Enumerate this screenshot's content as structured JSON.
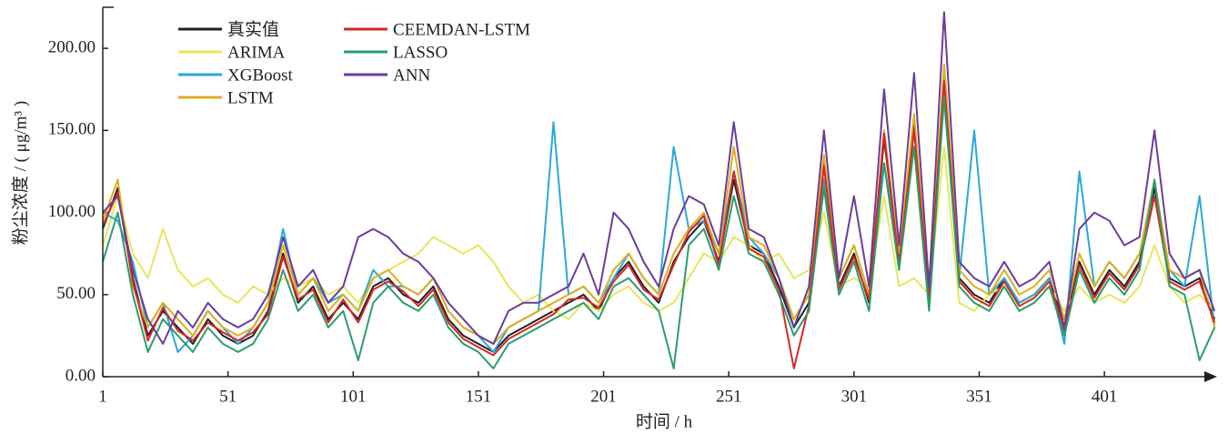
{
  "chart_data": {
    "type": "line",
    "y_label": "粉尘浓度 / ( μg/m³ )",
    "x_label": "时间 / h",
    "xlim": [
      1,
      446
    ],
    "xticks": [
      1,
      51,
      101,
      151,
      201,
      251,
      301,
      351,
      401
    ],
    "ylim": [
      0,
      225
    ],
    "yticks": [
      {
        "value": 0,
        "label": "0.00"
      },
      {
        "value": 50,
        "label": "50.00"
      },
      {
        "value": 100,
        "label": "100.00"
      },
      {
        "value": 150,
        "label": "150.00"
      },
      {
        "value": 200,
        "label": "200.00"
      }
    ],
    "grid": false,
    "legend": "upper left",
    "x": [
      1,
      7,
      13,
      19,
      25,
      31,
      37,
      43,
      49,
      55,
      61,
      67,
      73,
      79,
      85,
      91,
      97,
      103,
      109,
      115,
      121,
      127,
      133,
      139,
      145,
      151,
      157,
      163,
      169,
      175,
      181,
      187,
      193,
      199,
      205,
      211,
      217,
      223,
      229,
      235,
      241,
      247,
      253,
      259,
      265,
      271,
      277,
      283,
      289,
      295,
      301,
      307,
      313,
      319,
      325,
      331,
      337,
      343,
      349,
      355,
      361,
      367,
      373,
      379,
      385,
      391,
      397,
      403,
      409,
      415,
      421,
      427,
      433,
      439,
      445
    ],
    "series": [
      {
        "name": "真实值",
        "color": "#222222",
        "values": [
          90,
          115,
          60,
          25,
          40,
          30,
          20,
          35,
          25,
          20,
          25,
          40,
          75,
          45,
          55,
          35,
          45,
          35,
          55,
          60,
          50,
          45,
          55,
          35,
          25,
          20,
          15,
          25,
          30,
          35,
          40,
          45,
          50,
          40,
          60,
          70,
          55,
          45,
          70,
          85,
          95,
          70,
          120,
          80,
          75,
          55,
          30,
          45,
          130,
          55,
          75,
          45,
          145,
          70,
          155,
          45,
          185,
          60,
          50,
          45,
          60,
          45,
          50,
          60,
          30,
          70,
          50,
          65,
          55,
          70,
          115,
          60,
          55,
          60,
          35
        ]
      },
      {
        "name": "ARIMA",
        "color": "#e6e65c",
        "values": [
          80,
          110,
          75,
          60,
          90,
          65,
          55,
          60,
          50,
          45,
          55,
          50,
          60,
          55,
          60,
          50,
          55,
          45,
          60,
          65,
          70,
          75,
          85,
          80,
          75,
          80,
          70,
          55,
          45,
          50,
          40,
          35,
          45,
          40,
          50,
          55,
          45,
          40,
          45,
          60,
          75,
          70,
          85,
          80,
          70,
          75,
          60,
          65,
          100,
          55,
          60,
          55,
          110,
          55,
          60,
          50,
          140,
          45,
          40,
          50,
          55,
          45,
          50,
          55,
          40,
          55,
          45,
          50,
          45,
          55,
          80,
          55,
          45,
          50,
          40
        ]
      },
      {
        "name": "XGBoost",
        "color": "#2aa8d8",
        "values": [
          100,
          95,
          70,
          30,
          45,
          15,
          25,
          40,
          30,
          20,
          30,
          45,
          90,
          50,
          60,
          45,
          50,
          40,
          65,
          55,
          55,
          50,
          60,
          40,
          30,
          25,
          15,
          30,
          35,
          40,
          155,
          50,
          55,
          45,
          60,
          75,
          60,
          50,
          140,
          90,
          95,
          75,
          125,
          85,
          75,
          60,
          35,
          50,
          120,
          60,
          80,
          50,
          130,
          75,
          140,
          50,
          170,
          60,
          150,
          50,
          60,
          45,
          50,
          60,
          20,
          125,
          55,
          70,
          60,
          75,
          110,
          65,
          55,
          110,
          30
        ]
      },
      {
        "name": "LSTM",
        "color": "#e0ae1c",
        "values": [
          95,
          120,
          55,
          30,
          45,
          35,
          25,
          40,
          30,
          25,
          30,
          45,
          80,
          50,
          60,
          40,
          50,
          40,
          60,
          65,
          55,
          50,
          60,
          40,
          30,
          25,
          20,
          30,
          35,
          40,
          45,
          50,
          55,
          45,
          65,
          75,
          60,
          50,
          75,
          90,
          100,
          75,
          140,
          85,
          80,
          60,
          35,
          50,
          135,
          60,
          80,
          50,
          150,
          75,
          160,
          50,
          190,
          65,
          55,
          50,
          65,
          50,
          55,
          65,
          35,
          75,
          55,
          70,
          60,
          75,
          120,
          65,
          60,
          65,
          30
        ]
      },
      {
        "name": "CEEMDAN-LSTM",
        "color": "#d62728",
        "values": [
          92,
          112,
          58,
          22,
          42,
          28,
          22,
          33,
          27,
          22,
          27,
          38,
          73,
          47,
          53,
          33,
          47,
          33,
          53,
          58,
          52,
          43,
          53,
          33,
          23,
          18,
          13,
          23,
          28,
          33,
          38,
          47,
          48,
          42,
          58,
          68,
          53,
          47,
          68,
          88,
          98,
          68,
          125,
          78,
          73,
          53,
          5,
          43,
          128,
          53,
          73,
          47,
          148,
          68,
          150,
          47,
          180,
          58,
          48,
          43,
          58,
          43,
          48,
          58,
          28,
          68,
          48,
          63,
          53,
          68,
          110,
          58,
          53,
          58,
          33
        ]
      },
      {
        "name": "LASSO",
        "color": "#2a9d6e",
        "values": [
          70,
          100,
          50,
          15,
          35,
          25,
          15,
          30,
          20,
          15,
          20,
          35,
          65,
          40,
          50,
          30,
          40,
          10,
          45,
          55,
          45,
          40,
          50,
          30,
          20,
          15,
          5,
          20,
          25,
          30,
          35,
          40,
          45,
          35,
          55,
          60,
          50,
          40,
          5,
          80,
          90,
          65,
          110,
          75,
          70,
          50,
          25,
          40,
          115,
          50,
          70,
          40,
          130,
          65,
          140,
          40,
          170,
          55,
          45,
          40,
          55,
          40,
          45,
          55,
          25,
          65,
          45,
          60,
          50,
          65,
          120,
          55,
          50,
          10,
          30
        ]
      },
      {
        "name": "ANN",
        "color": "#6a3d9a",
        "values": [
          100,
          110,
          65,
          35,
          20,
          40,
          30,
          45,
          35,
          30,
          35,
          50,
          85,
          55,
          65,
          45,
          55,
          85,
          90,
          85,
          75,
          70,
          60,
          45,
          35,
          25,
          20,
          40,
          45,
          45,
          50,
          55,
          75,
          50,
          100,
          90,
          70,
          55,
          90,
          110,
          105,
          80,
          155,
          90,
          85,
          60,
          30,
          55,
          150,
          60,
          110,
          55,
          175,
          80,
          185,
          55,
          222,
          70,
          60,
          55,
          70,
          55,
          60,
          70,
          30,
          90,
          100,
          95,
          80,
          85,
          150,
          75,
          60,
          65,
          40
        ]
      }
    ]
  }
}
